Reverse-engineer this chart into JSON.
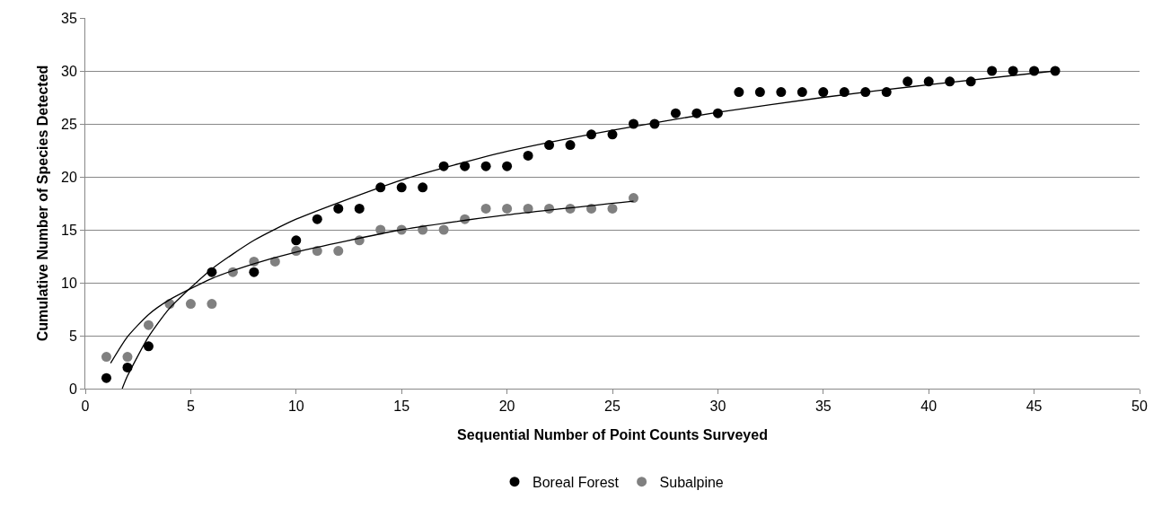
{
  "chart_data": {
    "type": "scatter",
    "xlabel": "Sequential Number of Point Counts Surveyed",
    "ylabel": "Cumulative Number of Species Detected",
    "xlim": [
      0,
      50
    ],
    "xticks": [
      0,
      5,
      10,
      15,
      20,
      25,
      30,
      35,
      40,
      45,
      50
    ],
    "ylim": [
      0,
      35
    ],
    "yticks": [
      0,
      5,
      10,
      15,
      20,
      25,
      30,
      35
    ],
    "grid": "y",
    "legend": "bottom",
    "marker": "circle",
    "series": [
      {
        "name": "Boreal Forest",
        "color": "#000000",
        "x": [
          1,
          2,
          3,
          4,
          5,
          6,
          7,
          8,
          9,
          10,
          11,
          12,
          13,
          14,
          15,
          16,
          17,
          18,
          19,
          20,
          21,
          22,
          23,
          24,
          25,
          26,
          27,
          28,
          29,
          30,
          31,
          32,
          33,
          34,
          35,
          36,
          37,
          38,
          39,
          40,
          41,
          42,
          43,
          44,
          45,
          46
        ],
        "values": [
          1,
          2,
          4,
          null,
          null,
          11,
          null,
          11,
          null,
          14,
          16,
          17,
          17,
          19,
          19,
          19,
          21,
          21,
          21,
          21,
          22,
          23,
          23,
          24,
          24,
          25,
          25,
          26,
          26,
          26,
          28,
          28,
          28,
          28,
          28,
          28,
          28,
          28,
          29,
          29,
          29,
          29,
          30,
          30,
          30,
          30
        ]
      },
      {
        "name": "Subalpine",
        "color": "#808080",
        "x": [
          1,
          2,
          3,
          4,
          5,
          6,
          7,
          8,
          9,
          10,
          11,
          12,
          13,
          14,
          15,
          16,
          17,
          18,
          19,
          20,
          21,
          22,
          23,
          24,
          25,
          26
        ],
        "values": [
          3,
          3,
          6,
          8,
          8,
          8,
          11,
          12,
          12,
          13,
          13,
          13,
          14,
          15,
          15,
          15,
          15,
          16,
          17,
          17,
          17,
          17,
          17,
          17,
          17,
          18
        ]
      },
      {
        "type": "line",
        "marker": "none",
        "color": "#000000",
        "x": [
          1.75,
          2,
          3,
          4,
          6,
          8,
          10,
          15,
          20,
          25,
          30,
          35,
          40,
          46
        ],
        "values": [
          0.0,
          1.2,
          4.9,
          7.6,
          11.3,
          14.0,
          16.0,
          19.7,
          22.4,
          24.4,
          26.1,
          27.5,
          28.7,
          30.0
        ]
      },
      {
        "type": "line",
        "marker": "none",
        "color": "#000000",
        "x": [
          1.2,
          2,
          3,
          4,
          6,
          8,
          10,
          15,
          20,
          26
        ],
        "values": [
          2.4,
          4.9,
          7.0,
          8.4,
          10.4,
          11.8,
          12.9,
          15.0,
          16.4,
          17.7
        ]
      }
    ]
  }
}
